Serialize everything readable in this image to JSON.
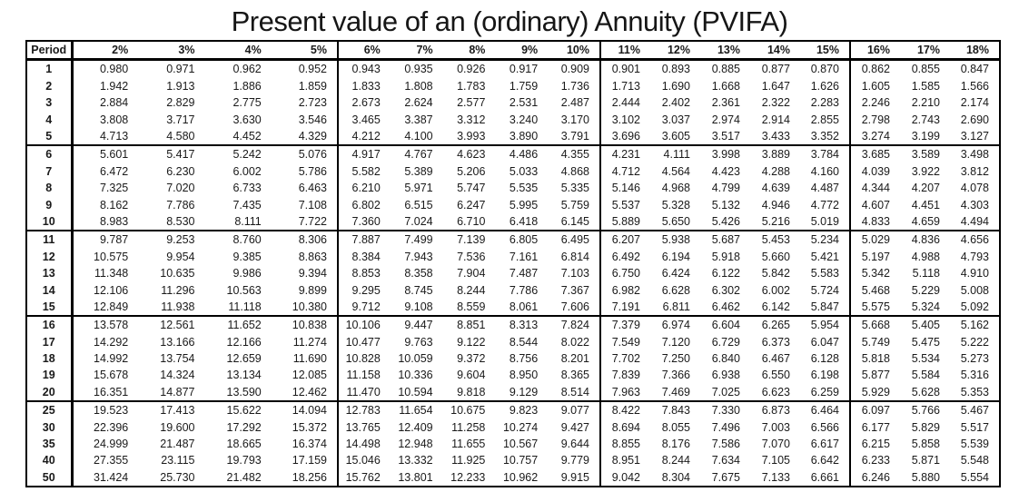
{
  "title": "Present value of an (ordinary) Annuity (PVIFA)",
  "colors": {
    "background": "#ffffff",
    "text": "#1a1a1a",
    "border": "#000000"
  },
  "table": {
    "corner_header": "Period",
    "rate_headers": [
      "2%",
      "3%",
      "4%",
      "5%",
      "6%",
      "7%",
      "8%",
      "9%",
      "10%",
      "11%",
      "12%",
      "13%",
      "14%",
      "15%",
      "16%",
      "17%",
      "18%"
    ],
    "group_start_columns": [
      4,
      9,
      14
    ],
    "group_start_periods": [
      "6",
      "11",
      "16",
      "25"
    ],
    "rows": [
      {
        "period": "1",
        "values": [
          "0.980",
          "0.971",
          "0.962",
          "0.952",
          "0.943",
          "0.935",
          "0.926",
          "0.917",
          "0.909",
          "0.901",
          "0.893",
          "0.885",
          "0.877",
          "0.870",
          "0.862",
          "0.855",
          "0.847"
        ]
      },
      {
        "period": "2",
        "values": [
          "1.942",
          "1.913",
          "1.886",
          "1.859",
          "1.833",
          "1.808",
          "1.783",
          "1.759",
          "1.736",
          "1.713",
          "1.690",
          "1.668",
          "1.647",
          "1.626",
          "1.605",
          "1.585",
          "1.566"
        ]
      },
      {
        "period": "3",
        "values": [
          "2.884",
          "2.829",
          "2.775",
          "2.723",
          "2.673",
          "2.624",
          "2.577",
          "2.531",
          "2.487",
          "2.444",
          "2.402",
          "2.361",
          "2.322",
          "2.283",
          "2.246",
          "2.210",
          "2.174"
        ]
      },
      {
        "period": "4",
        "values": [
          "3.808",
          "3.717",
          "3.630",
          "3.546",
          "3.465",
          "3.387",
          "3.312",
          "3.240",
          "3.170",
          "3.102",
          "3.037",
          "2.974",
          "2.914",
          "2.855",
          "2.798",
          "2.743",
          "2.690"
        ]
      },
      {
        "period": "5",
        "values": [
          "4.713",
          "4.580",
          "4.452",
          "4.329",
          "4.212",
          "4.100",
          "3.993",
          "3.890",
          "3.791",
          "3.696",
          "3.605",
          "3.517",
          "3.433",
          "3.352",
          "3.274",
          "3.199",
          "3.127"
        ]
      },
      {
        "period": "6",
        "values": [
          "5.601",
          "5.417",
          "5.242",
          "5.076",
          "4.917",
          "4.767",
          "4.623",
          "4.486",
          "4.355",
          "4.231",
          "4.111",
          "3.998",
          "3.889",
          "3.784",
          "3.685",
          "3.589",
          "3.498"
        ]
      },
      {
        "period": "7",
        "values": [
          "6.472",
          "6.230",
          "6.002",
          "5.786",
          "5.582",
          "5.389",
          "5.206",
          "5.033",
          "4.868",
          "4.712",
          "4.564",
          "4.423",
          "4.288",
          "4.160",
          "4.039",
          "3.922",
          "3.812"
        ]
      },
      {
        "period": "8",
        "values": [
          "7.325",
          "7.020",
          "6.733",
          "6.463",
          "6.210",
          "5.971",
          "5.747",
          "5.535",
          "5.335",
          "5.146",
          "4.968",
          "4.799",
          "4.639",
          "4.487",
          "4.344",
          "4.207",
          "4.078"
        ]
      },
      {
        "period": "9",
        "values": [
          "8.162",
          "7.786",
          "7.435",
          "7.108",
          "6.802",
          "6.515",
          "6.247",
          "5.995",
          "5.759",
          "5.537",
          "5.328",
          "5.132",
          "4.946",
          "4.772",
          "4.607",
          "4.451",
          "4.303"
        ]
      },
      {
        "period": "10",
        "values": [
          "8.983",
          "8.530",
          "8.111",
          "7.722",
          "7.360",
          "7.024",
          "6.710",
          "6.418",
          "6.145",
          "5.889",
          "5.650",
          "5.426",
          "5.216",
          "5.019",
          "4.833",
          "4.659",
          "4.494"
        ]
      },
      {
        "period": "11",
        "values": [
          "9.787",
          "9.253",
          "8.760",
          "8.306",
          "7.887",
          "7.499",
          "7.139",
          "6.805",
          "6.495",
          "6.207",
          "5.938",
          "5.687",
          "5.453",
          "5.234",
          "5.029",
          "4.836",
          "4.656"
        ]
      },
      {
        "period": "12",
        "values": [
          "10.575",
          "9.954",
          "9.385",
          "8.863",
          "8.384",
          "7.943",
          "7.536",
          "7.161",
          "6.814",
          "6.492",
          "6.194",
          "5.918",
          "5.660",
          "5.421",
          "5.197",
          "4.988",
          "4.793"
        ]
      },
      {
        "period": "13",
        "values": [
          "11.348",
          "10.635",
          "9.986",
          "9.394",
          "8.853",
          "8.358",
          "7.904",
          "7.487",
          "7.103",
          "6.750",
          "6.424",
          "6.122",
          "5.842",
          "5.583",
          "5.342",
          "5.118",
          "4.910"
        ]
      },
      {
        "period": "14",
        "values": [
          "12.106",
          "11.296",
          "10.563",
          "9.899",
          "9.295",
          "8.745",
          "8.244",
          "7.786",
          "7.367",
          "6.982",
          "6.628",
          "6.302",
          "6.002",
          "5.724",
          "5.468",
          "5.229",
          "5.008"
        ]
      },
      {
        "period": "15",
        "values": [
          "12.849",
          "11.938",
          "11.118",
          "10.380",
          "9.712",
          "9.108",
          "8.559",
          "8.061",
          "7.606",
          "7.191",
          "6.811",
          "6.462",
          "6.142",
          "5.847",
          "5.575",
          "5.324",
          "5.092"
        ]
      },
      {
        "period": "16",
        "values": [
          "13.578",
          "12.561",
          "11.652",
          "10.838",
          "10.106",
          "9.447",
          "8.851",
          "8.313",
          "7.824",
          "7.379",
          "6.974",
          "6.604",
          "6.265",
          "5.954",
          "5.668",
          "5.405",
          "5.162"
        ]
      },
      {
        "period": "17",
        "values": [
          "14.292",
          "13.166",
          "12.166",
          "11.274",
          "10.477",
          "9.763",
          "9.122",
          "8.544",
          "8.022",
          "7.549",
          "7.120",
          "6.729",
          "6.373",
          "6.047",
          "5.749",
          "5.475",
          "5.222"
        ]
      },
      {
        "period": "18",
        "values": [
          "14.992",
          "13.754",
          "12.659",
          "11.690",
          "10.828",
          "10.059",
          "9.372",
          "8.756",
          "8.201",
          "7.702",
          "7.250",
          "6.840",
          "6.467",
          "6.128",
          "5.818",
          "5.534",
          "5.273"
        ]
      },
      {
        "period": "19",
        "values": [
          "15.678",
          "14.324",
          "13.134",
          "12.085",
          "11.158",
          "10.336",
          "9.604",
          "8.950",
          "8.365",
          "7.839",
          "7.366",
          "6.938",
          "6.550",
          "6.198",
          "5.877",
          "5.584",
          "5.316"
        ]
      },
      {
        "period": "20",
        "values": [
          "16.351",
          "14.877",
          "13.590",
          "12.462",
          "11.470",
          "10.594",
          "9.818",
          "9.129",
          "8.514",
          "7.963",
          "7.469",
          "7.025",
          "6.623",
          "6.259",
          "5.929",
          "5.628",
          "5.353"
        ]
      },
      {
        "period": "25",
        "values": [
          "19.523",
          "17.413",
          "15.622",
          "14.094",
          "12.783",
          "11.654",
          "10.675",
          "9.823",
          "9.077",
          "8.422",
          "7.843",
          "7.330",
          "6.873",
          "6.464",
          "6.097",
          "5.766",
          "5.467"
        ]
      },
      {
        "period": "30",
        "values": [
          "22.396",
          "19.600",
          "17.292",
          "15.372",
          "13.765",
          "12.409",
          "11.258",
          "10.274",
          "9.427",
          "8.694",
          "8.055",
          "7.496",
          "7.003",
          "6.566",
          "6.177",
          "5.829",
          "5.517"
        ]
      },
      {
        "period": "35",
        "values": [
          "24.999",
          "21.487",
          "18.665",
          "16.374",
          "14.498",
          "12.948",
          "11.655",
          "10.567",
          "9.644",
          "8.855",
          "8.176",
          "7.586",
          "7.070",
          "6.617",
          "6.215",
          "5.858",
          "5.539"
        ]
      },
      {
        "period": "40",
        "values": [
          "27.355",
          "23.115",
          "19.793",
          "17.159",
          "15.046",
          "13.332",
          "11.925",
          "10.757",
          "9.779",
          "8.951",
          "8.244",
          "7.634",
          "7.105",
          "6.642",
          "6.233",
          "5.871",
          "5.548"
        ]
      },
      {
        "period": "50",
        "values": [
          "31.424",
          "25.730",
          "21.482",
          "18.256",
          "15.762",
          "13.801",
          "12.233",
          "10.962",
          "9.915",
          "9.042",
          "8.304",
          "7.675",
          "7.133",
          "6.661",
          "6.246",
          "5.880",
          "5.554"
        ]
      }
    ]
  }
}
